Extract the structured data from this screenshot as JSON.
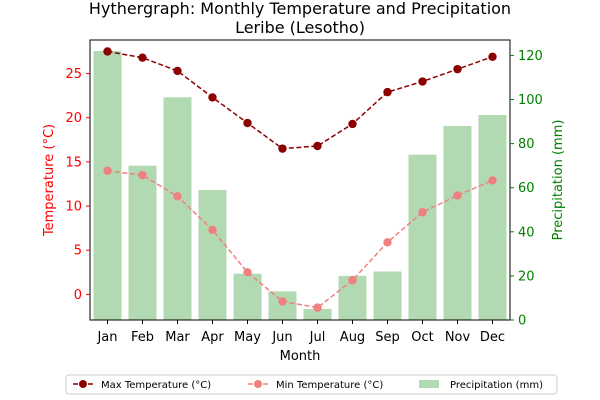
{
  "chart_data": {
    "type": "line+bar",
    "title": "Hythergraph: Monthly Temperature and Precipitation",
    "subtitle": "Leribe (Lesotho)",
    "xlabel": "Month",
    "ylabel_left": "Temperature (°C)",
    "ylabel_right": "Precipitation (mm)",
    "categories": [
      "Jan",
      "Feb",
      "Mar",
      "Apr",
      "May",
      "Jun",
      "Jul",
      "Aug",
      "Sep",
      "Oct",
      "Nov",
      "Dec"
    ],
    "y_left_lim": [
      -2.9,
      28.8
    ],
    "y_left_ticks": [
      0,
      5,
      10,
      15,
      20,
      25
    ],
    "y_right_lim": [
      0,
      127
    ],
    "y_right_ticks": [
      0,
      20,
      40,
      60,
      80,
      100,
      120
    ],
    "series": [
      {
        "name": "Max Temperature (°C)",
        "axis": "left",
        "kind": "line",
        "style": "dashed",
        "color": "#8b0000",
        "values": [
          27.5,
          26.8,
          25.3,
          22.3,
          19.4,
          16.5,
          16.8,
          19.3,
          22.9,
          24.1,
          25.5,
          26.9
        ]
      },
      {
        "name": "Min Temperature (°C)",
        "axis": "left",
        "kind": "line",
        "style": "dashed",
        "color": "#f08080",
        "values": [
          14.0,
          13.5,
          11.1,
          7.3,
          2.5,
          -0.8,
          -1.5,
          1.6,
          5.9,
          9.3,
          11.2,
          12.9
        ]
      },
      {
        "name": "Precipitation (mm)",
        "axis": "right",
        "kind": "bar",
        "color": "#b2dab2",
        "values": [
          122,
          70,
          101,
          59,
          21,
          13,
          5,
          20,
          22,
          75,
          88,
          93
        ]
      }
    ],
    "legend_position": "bottom-center",
    "grid": false,
    "colors": {
      "left_axis": "#ff0000",
      "right_axis": "#008000"
    }
  }
}
